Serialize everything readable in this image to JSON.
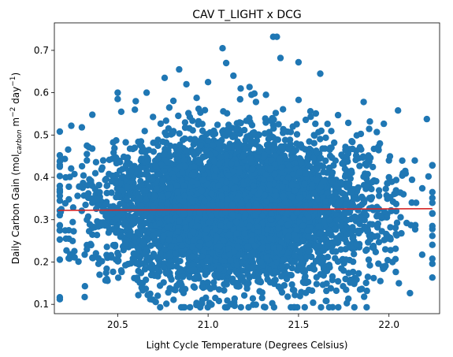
{
  "chart_data": {
    "type": "scatter",
    "title": "CAV T_LIGHT x DCG",
    "xlabel": "Light Cycle Temperature (Degrees Celsius)",
    "ylabel": {
      "prefix": "Daily Carbon Gain (mol",
      "sub": "carbon",
      "mid": " m",
      "sup1": "−2",
      "mid2": " day",
      "sup2": "−1",
      "suffix": ")"
    },
    "xlim": [
      20.15,
      22.28
    ],
    "ylim": [
      0.078,
      0.765
    ],
    "x_ticks": [
      20.5,
      21.0,
      21.5,
      22.0
    ],
    "x_tick_labels": [
      "20.5",
      "21.0",
      "21.5",
      "22.0"
    ],
    "y_ticks": [
      0.1,
      0.2,
      0.3,
      0.4,
      0.5,
      0.6,
      0.7
    ],
    "y_tick_labels": [
      "0.1",
      "0.2",
      "0.3",
      "0.4",
      "0.5",
      "0.6",
      "0.7"
    ],
    "grid": false,
    "marker_color": "#1f77b4",
    "fit_line": {
      "color": "#d62728",
      "x": [
        20.17,
        22.24
      ],
      "y": [
        0.322,
        0.326
      ]
    },
    "points": [
      [
        20.18,
        0.508
      ],
      [
        20.18,
        0.452
      ],
      [
        20.18,
        0.425
      ],
      [
        20.18,
        0.365
      ],
      [
        20.18,
        0.345
      ],
      [
        20.23,
        0.378
      ],
      [
        20.23,
        0.348
      ],
      [
        20.23,
        0.275
      ],
      [
        20.23,
        0.255
      ],
      [
        20.33,
        0.475
      ],
      [
        20.33,
        0.455
      ],
      [
        20.33,
        0.44
      ],
      [
        20.33,
        0.3
      ],
      [
        20.33,
        0.24
      ],
      [
        20.33,
        0.23
      ],
      [
        20.36,
        0.548
      ],
      [
        20.36,
        0.38
      ],
      [
        20.36,
        0.34
      ],
      [
        20.36,
        0.21
      ],
      [
        20.4,
        0.17
      ],
      [
        20.42,
        0.44
      ],
      [
        20.44,
        0.38
      ],
      [
        20.44,
        0.16
      ],
      [
        20.5,
        0.6
      ],
      [
        20.5,
        0.585
      ],
      [
        20.52,
        0.555
      ],
      [
        20.52,
        0.18
      ],
      [
        20.6,
        0.58
      ],
      [
        20.66,
        0.6
      ],
      [
        20.68,
        0.125
      ],
      [
        20.68,
        0.112
      ],
      [
        20.76,
        0.635
      ],
      [
        20.78,
        0.128
      ],
      [
        20.84,
        0.655
      ],
      [
        20.88,
        0.62
      ],
      [
        20.92,
        0.142
      ],
      [
        21.0,
        0.625
      ],
      [
        21.04,
        0.115
      ],
      [
        21.06,
        0.108
      ],
      [
        21.08,
        0.705
      ],
      [
        21.1,
        0.67
      ],
      [
        21.14,
        0.64
      ],
      [
        21.18,
        0.61
      ],
      [
        21.24,
        0.595
      ],
      [
        21.32,
        0.595
      ],
      [
        21.36,
        0.732
      ],
      [
        21.38,
        0.732
      ],
      [
        21.4,
        0.682
      ],
      [
        21.5,
        0.672
      ],
      [
        21.44,
        0.118
      ],
      [
        21.48,
        0.122
      ],
      [
        21.62,
        0.645
      ],
      [
        21.6,
        0.148
      ],
      [
        21.76,
        0.16
      ],
      [
        21.86,
        0.578
      ],
      [
        21.84,
        0.135
      ],
      [
        22.02,
        0.2
      ],
      [
        22.05,
        0.558
      ],
      [
        22.04,
        0.32
      ],
      [
        22.0,
        0.4
      ],
      [
        21.95,
        0.31
      ],
      [
        22.08,
        0.36
      ],
      [
        22.08,
        0.41
      ],
      [
        22.24,
        0.365
      ],
      [
        22.24,
        0.34
      ],
      [
        22.24,
        0.315
      ],
      [
        22.24,
        0.285
      ],
      [
        22.24,
        0.278
      ],
      [
        22.15,
        0.34
      ],
      [
        22.0,
        0.44
      ],
      [
        21.95,
        0.48
      ],
      [
        21.98,
        0.23
      ],
      [
        21.92,
        0.26
      ]
    ],
    "cloud": {
      "count": 5500,
      "x_center": 21.16,
      "x_spread": 0.36,
      "y_center": 0.325,
      "y_spread": 0.085,
      "seed": 7
    }
  }
}
